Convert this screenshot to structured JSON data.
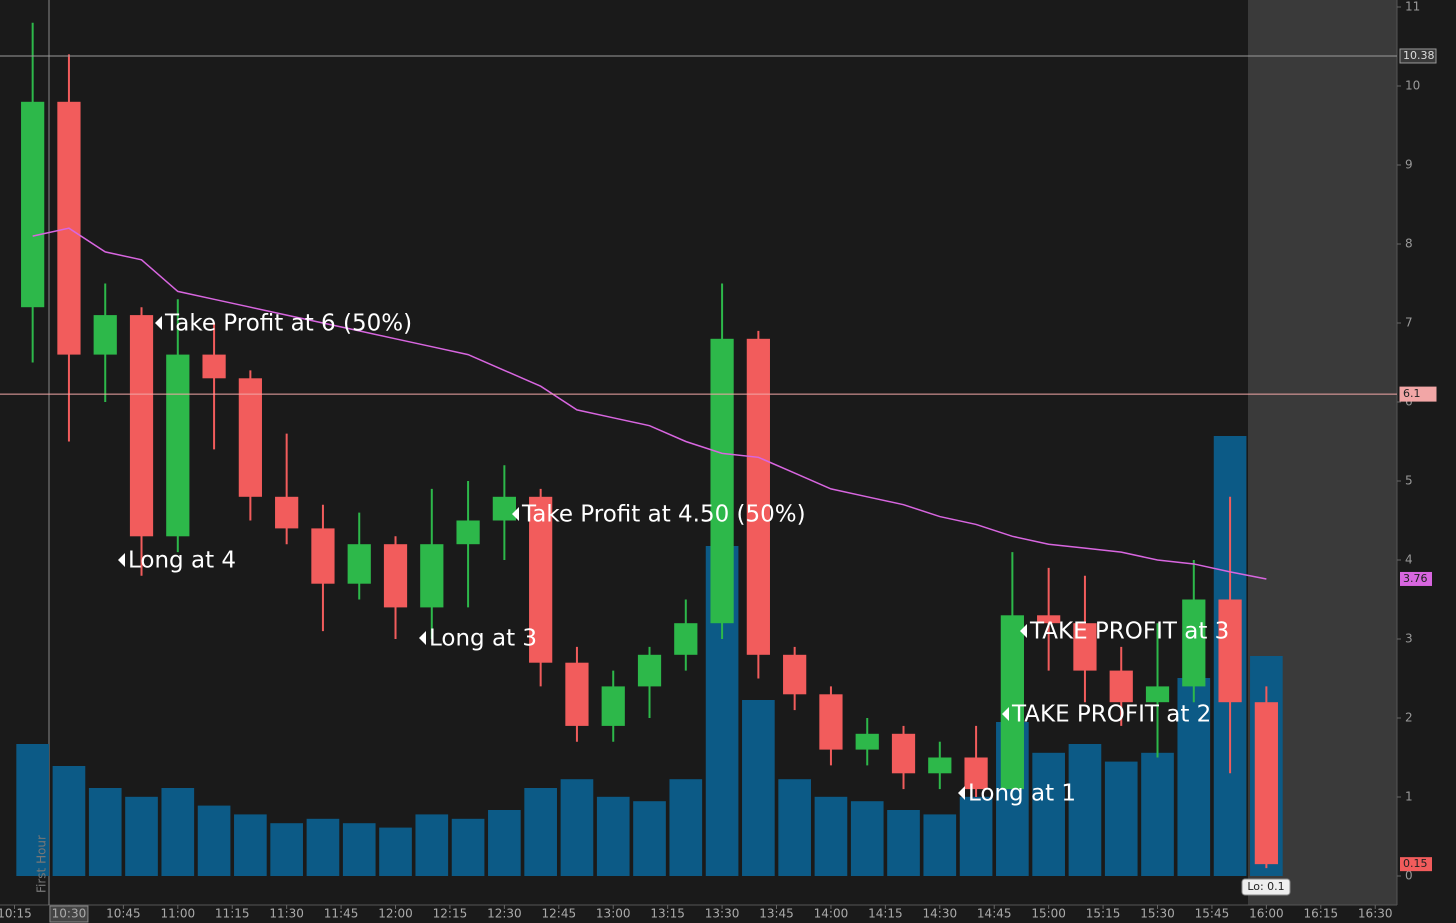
{
  "chart_data": {
    "type": "candlestick",
    "x": [
      "10:15",
      "10:25",
      "10:35",
      "10:45",
      "10:55",
      "11:05",
      "11:15",
      "11:25",
      "11:35",
      "11:45",
      "11:55",
      "12:05",
      "12:15",
      "12:25",
      "12:35",
      "12:45",
      "12:55",
      "13:05",
      "13:15",
      "13:25",
      "13:35",
      "13:45",
      "13:55",
      "14:05",
      "14:15",
      "14:25",
      "14:35",
      "14:45",
      "14:55",
      "15:05",
      "15:15",
      "15:25",
      "15:35",
      "15:45",
      "15:55"
    ],
    "open": [
      7.2,
      9.8,
      6.6,
      7.1,
      4.3,
      6.6,
      6.3,
      4.8,
      4.4,
      3.7,
      4.2,
      3.4,
      4.2,
      4.5,
      4.8,
      2.7,
      1.9,
      2.4,
      2.8,
      3.2,
      6.8,
      2.8,
      2.3,
      1.6,
      1.8,
      1.3,
      1.5,
      1.1,
      3.3,
      3.2,
      2.6,
      2.2,
      2.4,
      3.5,
      2.2
    ],
    "high": [
      10.8,
      10.4,
      7.5,
      7.2,
      7.3,
      7.0,
      6.4,
      5.6,
      4.7,
      4.6,
      4.3,
      4.9,
      5.0,
      5.2,
      4.9,
      2.9,
      2.6,
      2.9,
      3.5,
      7.5,
      6.9,
      2.9,
      2.4,
      2.0,
      1.9,
      1.7,
      1.9,
      4.1,
      3.9,
      3.8,
      2.9,
      3.2,
      4.0,
      4.8,
      2.4
    ],
    "low": [
      6.5,
      5.5,
      6.0,
      3.8,
      4.1,
      5.4,
      4.5,
      4.2,
      3.1,
      3.5,
      3.0,
      3.0,
      3.4,
      4.0,
      2.4,
      1.7,
      1.7,
      2.0,
      2.6,
      3.0,
      2.5,
      2.1,
      1.4,
      1.4,
      1.1,
      1.1,
      1.0,
      1.1,
      2.6,
      2.2,
      1.9,
      1.5,
      2.2,
      1.3,
      0.1
    ],
    "close": [
      9.8,
      6.6,
      7.1,
      4.3,
      6.6,
      6.3,
      4.8,
      4.4,
      3.7,
      4.2,
      3.4,
      4.2,
      4.5,
      4.8,
      2.7,
      1.9,
      2.4,
      2.8,
      3.2,
      6.8,
      2.8,
      2.3,
      1.6,
      1.8,
      1.3,
      1.5,
      1.1,
      3.3,
      3.2,
      2.6,
      2.2,
      2.4,
      3.5,
      2.2,
      0.15
    ],
    "volume": [
      30,
      25,
      20,
      18,
      20,
      16,
      14,
      12,
      13,
      12,
      11,
      14,
      13,
      15,
      20,
      22,
      18,
      17,
      22,
      75,
      40,
      22,
      18,
      17,
      15,
      14,
      18,
      35,
      28,
      30,
      26,
      28,
      45,
      100,
      50
    ],
    "vwap": {
      "color": "#d866e0",
      "values": [
        8.1,
        8.2,
        7.9,
        7.8,
        7.4,
        7.3,
        7.2,
        7.1,
        7.0,
        6.9,
        6.8,
        6.7,
        6.6,
        6.4,
        6.2,
        5.9,
        5.8,
        5.7,
        5.5,
        5.35,
        5.3,
        5.1,
        4.9,
        4.8,
        4.7,
        4.55,
        4.45,
        4.3,
        4.2,
        4.15,
        4.1,
        4.0,
        3.95,
        3.85,
        3.76
      ]
    },
    "up_color": "#2db84a",
    "down_color": "#f25c5c",
    "volume_color": "#0c5a86",
    "levels": [
      {
        "value": 10.38,
        "color": "#9a9a9a"
      },
      {
        "value": 6.1,
        "color": "#f2a6a6"
      }
    ],
    "low_label": "Lo: 0.1",
    "session_label": "First Hour",
    "annotations": [
      "Take Profit at 6 (50%)",
      "Long at 4",
      "Take Profit at 4.50 (50%)",
      "Long at 3",
      "TAKE PROFIT at 3",
      "TAKE PROFIT at 2",
      "Long at 1"
    ],
    "xlim": [
      "10:11",
      "16:36"
    ],
    "xticks": [
      "10:15",
      "10:30",
      "10:45",
      "11:00",
      "11:15",
      "11:30",
      "11:45",
      "12:00",
      "12:15",
      "12:30",
      "12:45",
      "13:00",
      "13:15",
      "13:30",
      "13:45",
      "14:00",
      "14:15",
      "14:30",
      "14:45",
      "15:00",
      "15:15",
      "15:30",
      "15:45",
      "16:00",
      "16:15",
      "16:30"
    ],
    "ylim": [
      0,
      11
    ],
    "yticks": [
      0,
      1,
      2,
      3,
      4,
      5,
      6,
      7,
      8,
      9,
      10,
      11
    ]
  }
}
